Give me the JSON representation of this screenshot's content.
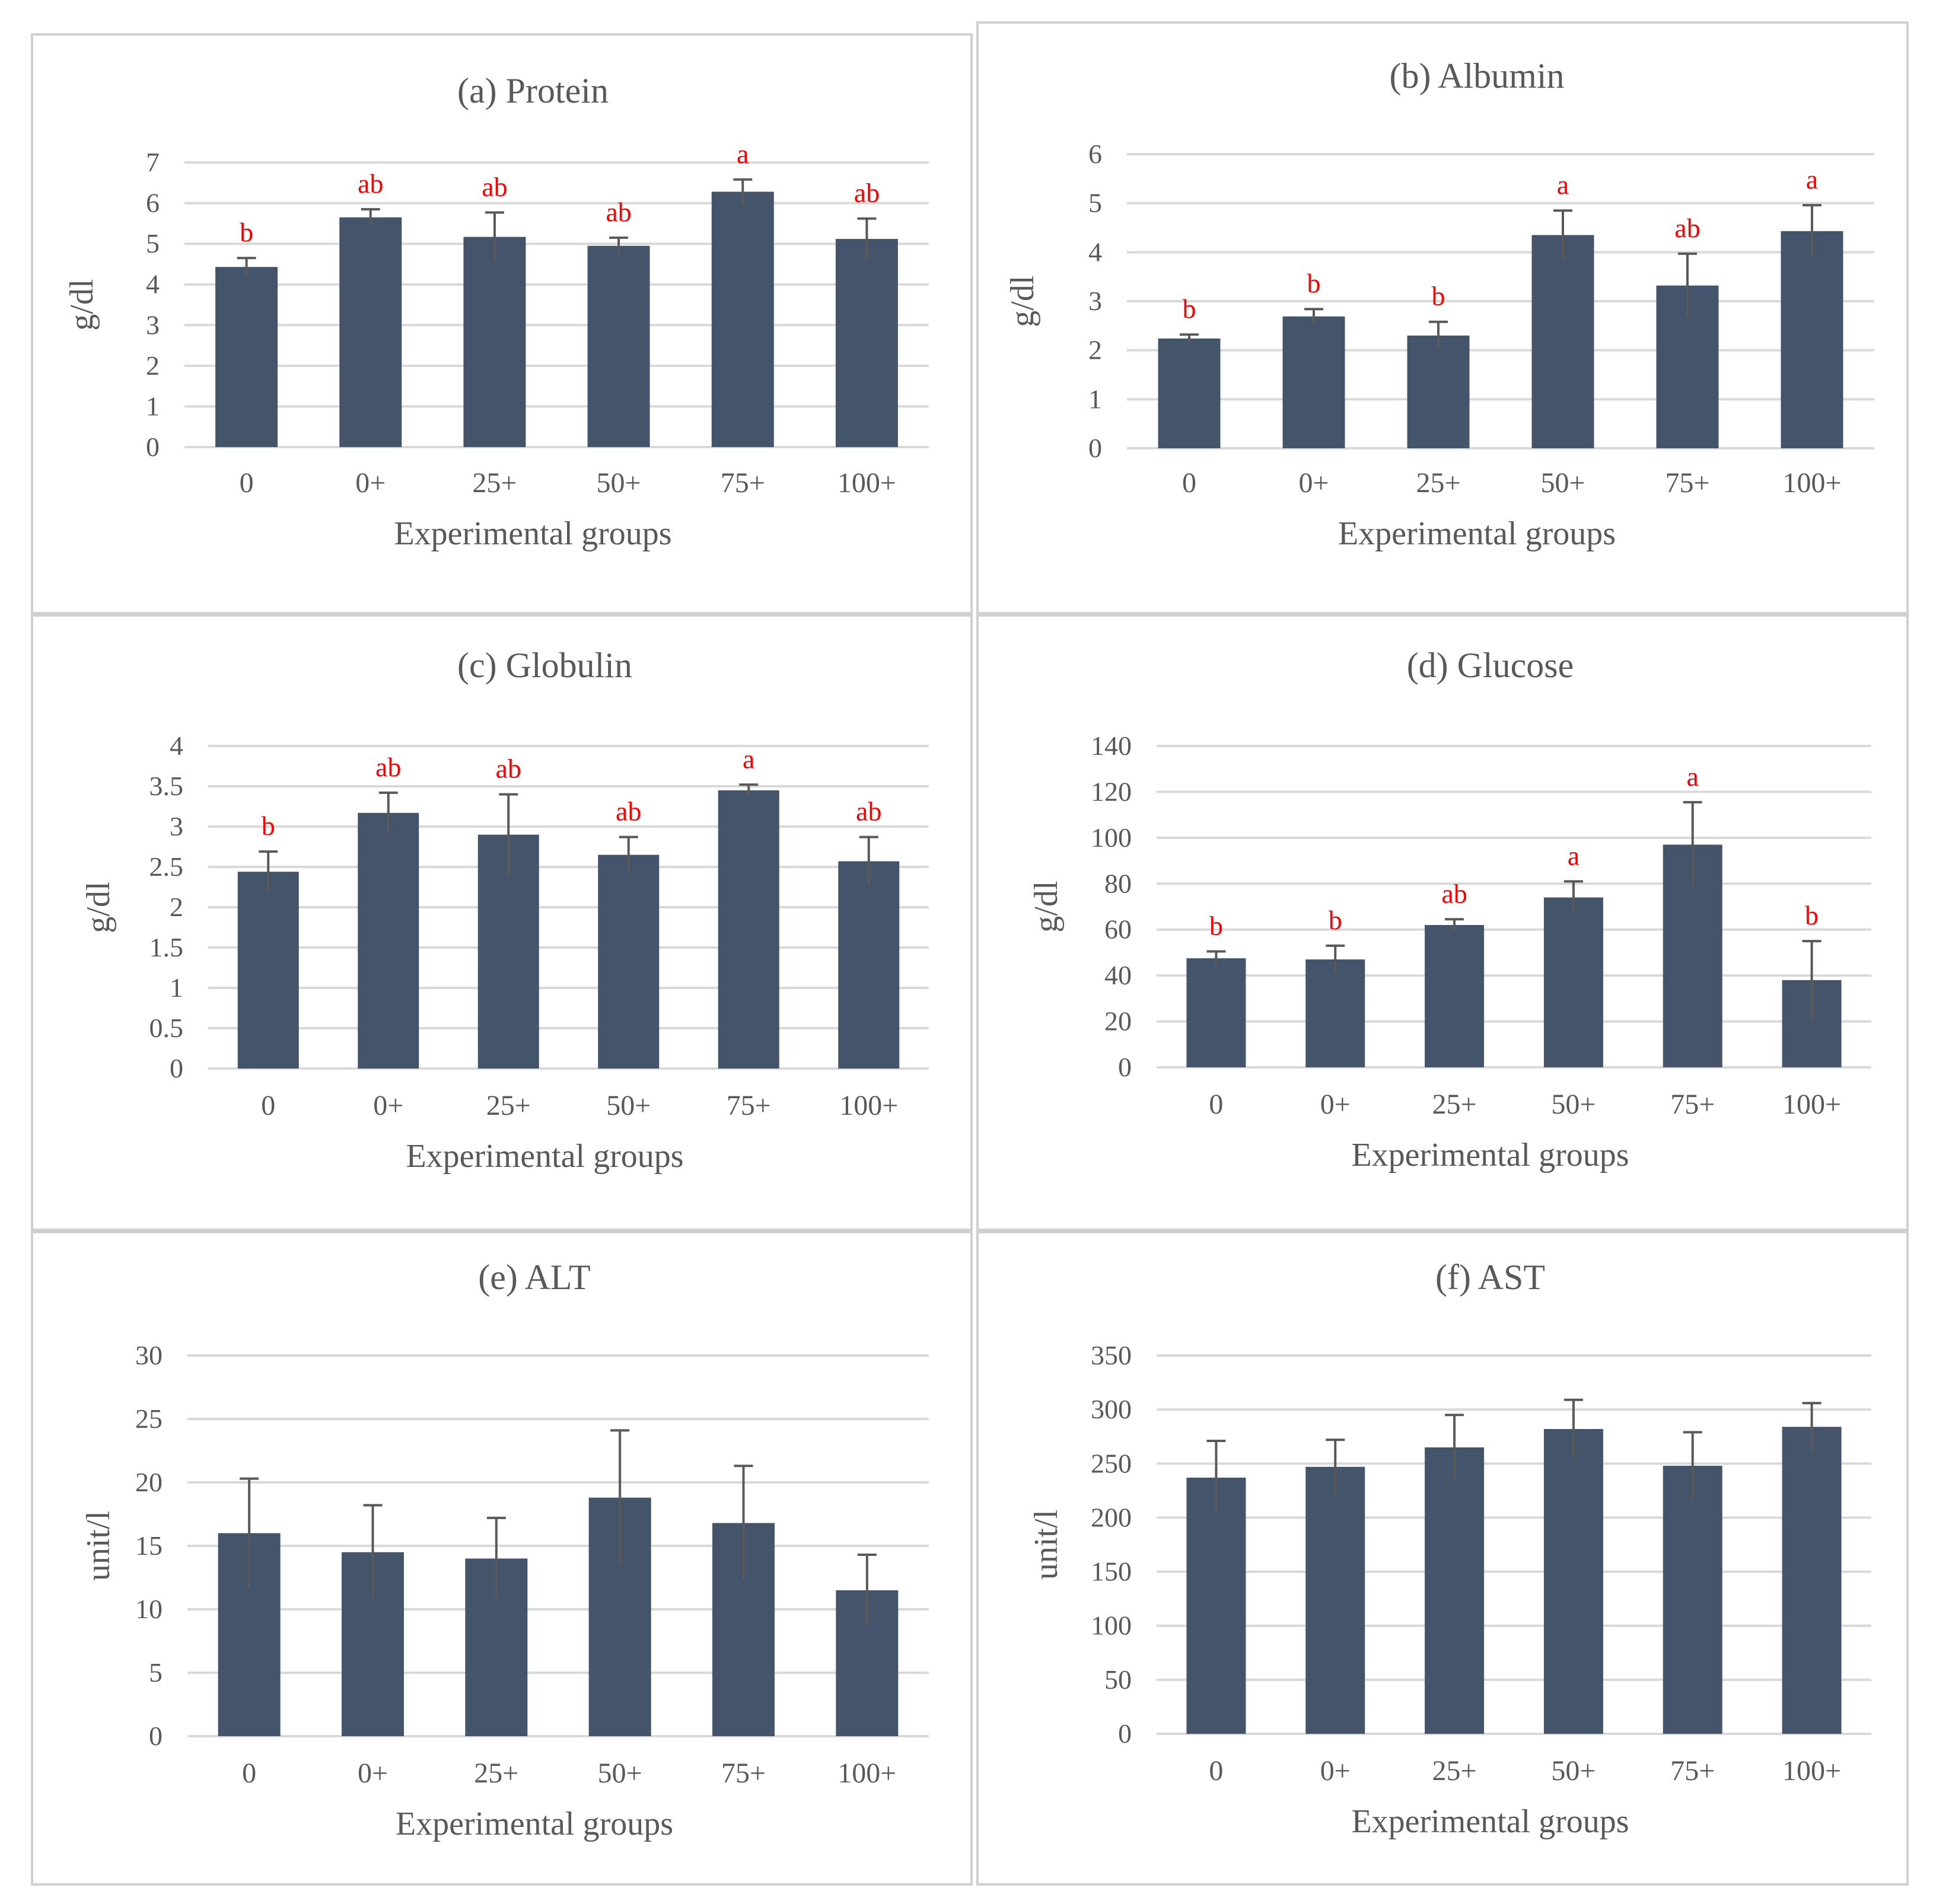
{
  "chart_data": [
    {
      "id": "a",
      "type": "bar",
      "title": "(a) Protein",
      "xlabel": "Experimental groups",
      "ylabel": "g/dl",
      "categories": [
        "0",
        "0+",
        "25+",
        "50+",
        "75+",
        "100+"
      ],
      "values": [
        4.43,
        5.65,
        5.17,
        4.95,
        6.28,
        5.12
      ],
      "errors": [
        0.22,
        0.2,
        0.6,
        0.2,
        0.3,
        0.5
      ],
      "letters": [
        "b",
        "ab",
        "ab",
        "ab",
        "a",
        "ab"
      ],
      "ylim": [
        0,
        7
      ],
      "yticks": [
        "0",
        "1",
        "2",
        "3",
        "4",
        "5",
        "6",
        "7"
      ],
      "grid": true
    },
    {
      "id": "b",
      "type": "bar",
      "title": "(b) Albumin",
      "xlabel": "Experimental groups",
      "ylabel": "g/dl",
      "categories": [
        "0",
        "0+",
        "25+",
        "50+",
        "75+",
        "100+"
      ],
      "values": [
        2.24,
        2.69,
        2.3,
        4.35,
        3.32,
        4.43
      ],
      "errors": [
        0.08,
        0.15,
        0.28,
        0.5,
        0.65,
        0.53
      ],
      "letters": [
        "b",
        "b",
        "b",
        "a",
        "ab",
        "a"
      ],
      "ylim": [
        0,
        6
      ],
      "yticks": [
        "0",
        "1",
        "2",
        "3",
        "4",
        "5",
        "6"
      ],
      "grid": true
    },
    {
      "id": "c",
      "type": "bar",
      "title": "(c) Globulin",
      "xlabel": "Experimental groups",
      "ylabel": "g/dl",
      "categories": [
        "0",
        "0+",
        "25+",
        "50+",
        "75+",
        "100+"
      ],
      "values": [
        2.44,
        3.17,
        2.9,
        2.65,
        3.45,
        2.57
      ],
      "errors": [
        0.25,
        0.25,
        0.5,
        0.22,
        0.07,
        0.3
      ],
      "letters": [
        "b",
        "ab",
        "ab",
        "ab",
        "a",
        "ab"
      ],
      "ylim": [
        0,
        4
      ],
      "yticks": [
        "0",
        "0.5",
        "1",
        "1.5",
        "2",
        "2.5",
        "3",
        "3.5",
        "4"
      ],
      "grid": true
    },
    {
      "id": "d",
      "type": "bar",
      "title": "(d) Glucose",
      "xlabel": "Experimental groups",
      "ylabel": "g/dl",
      "categories": [
        "0",
        "0+",
        "25+",
        "50+",
        "75+",
        "100+"
      ],
      "values": [
        47.5,
        47,
        62,
        74,
        97,
        38
      ],
      "errors": [
        3,
        6,
        2.5,
        7,
        18.5,
        17
      ],
      "letters": [
        "b",
        "b",
        "ab",
        "a",
        "a",
        "b"
      ],
      "ylim": [
        0,
        140
      ],
      "yticks": [
        "0",
        "20",
        "40",
        "60",
        "80",
        "100",
        "120",
        "140"
      ],
      "grid": true
    },
    {
      "id": "e",
      "type": "bar",
      "title": "(e) ALT",
      "xlabel": "Experimental groups",
      "ylabel": "unit/l",
      "categories": [
        "0",
        "0+",
        "25+",
        "50+",
        "75+",
        "100+"
      ],
      "values": [
        16,
        14.5,
        14,
        18.8,
        16.8,
        11.5
      ],
      "errors": [
        4.3,
        3.7,
        3.2,
        5.3,
        4.5,
        2.8
      ],
      "letters": [],
      "ylim": [
        0,
        30
      ],
      "yticks": [
        "0",
        "5",
        "10",
        "15",
        "20",
        "25",
        "30"
      ],
      "grid": true
    },
    {
      "id": "f",
      "type": "bar",
      "title": "(f) AST",
      "xlabel": "Experimental groups",
      "ylabel": "unit/l",
      "categories": [
        "0",
        "0+",
        "25+",
        "50+",
        "75+",
        "100+"
      ],
      "values": [
        237,
        247,
        265,
        282,
        248,
        284
      ],
      "errors": [
        34,
        25,
        30,
        27,
        31,
        22
      ],
      "letters": [],
      "ylim": [
        0,
        350
      ],
      "yticks": [
        "0",
        "50",
        "100",
        "150",
        "200",
        "250",
        "300",
        "350"
      ],
      "grid": true
    }
  ],
  "colors": {
    "bar": "#44546a",
    "error_bar": "#595959",
    "grid": "#d9d9d9",
    "letters": "#ff0000",
    "text": "#595959"
  }
}
